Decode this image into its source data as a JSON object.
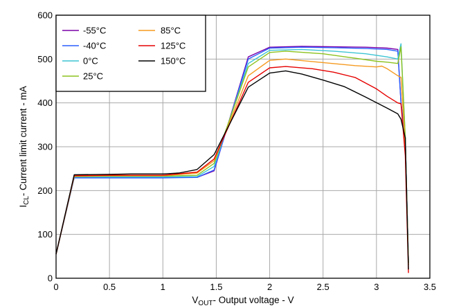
{
  "chart_data": {
    "type": "line",
    "xlabel_main": "V",
    "xlabel_sub": "OUT",
    "xlabel_rest": "- Output voltage - V",
    "ylabel_main": "I",
    "ylabel_sub": "CL",
    "ylabel_rest": "- Current limit current - mA",
    "xlim": [
      0,
      3.5
    ],
    "ylim": [
      0,
      600
    ],
    "x_ticks": [
      "0",
      "0.5",
      "1",
      "1.5",
      "2",
      "2.5",
      "3",
      "3.5"
    ],
    "y_ticks": [
      "0",
      "100",
      "200",
      "300",
      "400",
      "500",
      "600"
    ],
    "grid": true,
    "legend_position": "top-left",
    "series": [
      {
        "name": "-55°C",
        "color": "#7a00a8",
        "x": [
          0,
          0.17,
          0.5,
          1.0,
          1.32,
          1.48,
          1.8,
          2.0,
          2.3,
          2.6,
          2.9,
          3.1,
          3.2,
          3.23,
          3.27,
          3.3
        ],
        "y": [
          55,
          230,
          230,
          230,
          230,
          245,
          505,
          527,
          529,
          528,
          527,
          525,
          522,
          400,
          320,
          35
        ]
      },
      {
        "name": "-40°C",
        "color": "#2a5fff",
        "x": [
          0,
          0.17,
          0.5,
          1.0,
          1.32,
          1.48,
          1.8,
          2.0,
          2.3,
          2.6,
          2.9,
          3.1,
          3.2,
          3.23,
          3.27,
          3.3
        ],
        "y": [
          55,
          229,
          229,
          229,
          230,
          247,
          500,
          525,
          527,
          526,
          524,
          522,
          518,
          400,
          320,
          35
        ]
      },
      {
        "name": "0°C",
        "color": "#3cc4d4",
        "x": [
          0,
          0.17,
          0.5,
          1.0,
          1.32,
          1.48,
          1.8,
          2.0,
          2.3,
          2.6,
          2.9,
          3.1,
          3.2,
          3.23,
          3.27,
          3.3
        ],
        "y": [
          55,
          231,
          231,
          231,
          232,
          255,
          490,
          520,
          522,
          518,
          512,
          505,
          500,
          535,
          320,
          35
        ]
      },
      {
        "name": "25°C",
        "color": "#8cc21e",
        "x": [
          0,
          0.17,
          0.5,
          1.0,
          1.32,
          1.48,
          1.8,
          2.0,
          2.15,
          2.5,
          2.8,
          3.0,
          3.1,
          3.2,
          3.23,
          3.27,
          3.3
        ],
        "y": [
          55,
          232,
          233,
          233,
          235,
          262,
          482,
          515,
          518,
          512,
          502,
          495,
          493,
          490,
          528,
          320,
          35
        ]
      },
      {
        "name": "85°C",
        "color": "#f59a1f",
        "x": [
          0,
          0.17,
          0.5,
          1.0,
          1.32,
          1.48,
          1.8,
          2.0,
          2.15,
          2.5,
          2.8,
          3.0,
          3.05,
          3.1,
          3.2,
          3.23,
          3.27,
          3.3
        ],
        "y": [
          55,
          233,
          234,
          234,
          240,
          268,
          462,
          497,
          500,
          492,
          485,
          482,
          484,
          478,
          462,
          458,
          300,
          30
        ]
      },
      {
        "name": "125°C",
        "color": "#e60000",
        "x": [
          0,
          0.17,
          0.5,
          1.0,
          1.32,
          1.48,
          1.8,
          2.0,
          2.15,
          2.4,
          2.6,
          2.8,
          3.0,
          3.1,
          3.2,
          3.23,
          3.27,
          3.3
        ],
        "y": [
          55,
          234,
          235,
          235,
          242,
          272,
          447,
          480,
          483,
          478,
          470,
          458,
          432,
          415,
          400,
          398,
          280,
          12
        ]
      },
      {
        "name": "150°C",
        "color": "#000000",
        "x": [
          0,
          0.17,
          0.5,
          0.7,
          1.0,
          1.15,
          1.32,
          1.48,
          1.8,
          2.0,
          2.15,
          2.3,
          2.5,
          2.7,
          2.9,
          3.1,
          3.2,
          3.23,
          3.27,
          3.3
        ],
        "y": [
          55,
          236,
          237,
          238,
          238,
          240,
          248,
          282,
          436,
          468,
          473,
          466,
          452,
          437,
          413,
          388,
          375,
          363,
          320,
          20
        ]
      }
    ]
  }
}
